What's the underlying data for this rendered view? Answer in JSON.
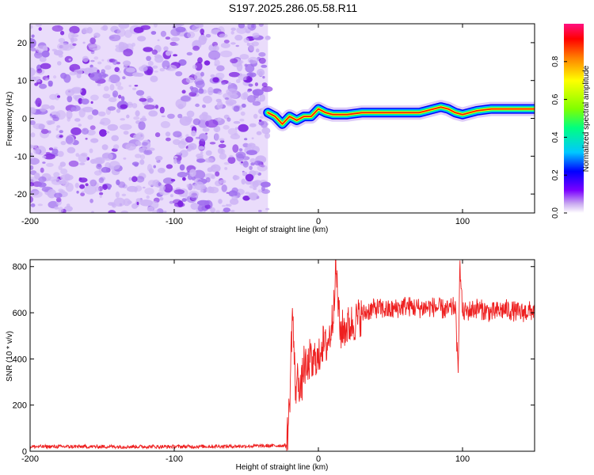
{
  "title": "S197.2025.286.05.58.R11",
  "chart_data": [
    {
      "type": "heatmap",
      "name": "spectrogram",
      "xlabel": "Height of straight line (km)",
      "ylabel": "Frequency (Hz)",
      "xlim": [
        -200,
        150
      ],
      "ylim": [
        -25,
        25
      ],
      "xticks": [
        -200,
        -100,
        0,
        100
      ],
      "yticks": [
        20,
        10,
        0,
        -10,
        -20
      ],
      "noise_region_x": [
        -200,
        -35
      ],
      "signal_track": {
        "x": [
          -35,
          -30,
          -25,
          -20,
          -15,
          -10,
          -5,
          0,
          5,
          10,
          20,
          30,
          40,
          50,
          60,
          70,
          80,
          85,
          90,
          95,
          100,
          105,
          110,
          120,
          130,
          140,
          150
        ],
        "freq_hz": [
          1.5,
          0.5,
          -1.5,
          0.5,
          -0.5,
          0.5,
          0.5,
          2.5,
          1.5,
          1.0,
          1.0,
          1.5,
          1.5,
          1.5,
          1.5,
          1.5,
          2.5,
          3.0,
          2.5,
          1.5,
          1.0,
          1.5,
          2.0,
          2.5,
          2.5,
          2.5,
          2.5
        ]
      },
      "colorbar": {
        "label": "Normalized spectral amplitude",
        "range": [
          0.0,
          1.0
        ],
        "ticks": [
          "0.0",
          "0.2",
          "0.4",
          "0.6",
          "0.8"
        ],
        "colors": [
          "#ffffff",
          "#c8a8f0",
          "#7a00ff",
          "#0000ff",
          "#00c8ff",
          "#00ff80",
          "#80ff00",
          "#ffff00",
          "#ff8000",
          "#ff0000",
          "#ff1080"
        ]
      }
    },
    {
      "type": "line",
      "name": "snr",
      "xlabel": "Height of straight line (km)",
      "ylabel": "SNR (10 * v/v)",
      "xlim": [
        -200,
        150
      ],
      "ylim": [
        0,
        830
      ],
      "xticks": [
        -200,
        -100,
        0,
        100
      ],
      "yticks": [
        0,
        200,
        400,
        600,
        800
      ],
      "color": "#ee2020",
      "series": [
        {
          "name": "SNR",
          "x": [
            -200,
            -150,
            -100,
            -50,
            -22,
            -20,
            -18,
            -16,
            -14,
            -12,
            -10,
            -8,
            -6,
            -4,
            -2,
            0,
            2,
            5,
            8,
            10,
            12,
            15,
            20,
            25,
            30,
            35,
            40,
            50,
            60,
            70,
            80,
            90,
            95,
            97,
            98,
            100,
            110,
            120,
            130,
            140,
            150
          ],
          "values": [
            20,
            20,
            20,
            22,
            25,
            200,
            620,
            270,
            320,
            260,
            380,
            340,
            400,
            360,
            420,
            380,
            470,
            450,
            500,
            580,
            810,
            520,
            540,
            560,
            590,
            610,
            620,
            610,
            630,
            620,
            625,
            610,
            630,
            320,
            820,
            600,
            620,
            600,
            615,
            600,
            610
          ]
        }
      ]
    }
  ]
}
